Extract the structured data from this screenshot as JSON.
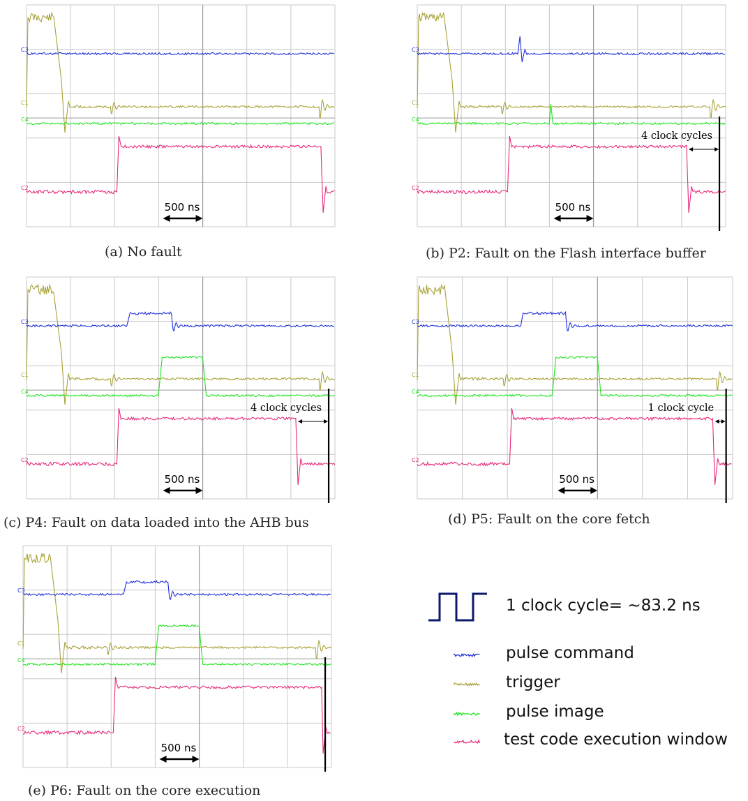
{
  "chart_data": [
    {
      "type": "line",
      "id": "a",
      "caption": "(a) No fault",
      "timebase_label": "500 ns",
      "colors": {
        "pulse_command": "#1f2fd8",
        "trigger": "#a8a23a",
        "pulse_image": "#1fe41f",
        "window": "#e8297a"
      },
      "pulse_command_active": false,
      "pulse_image_active": false,
      "window_clock_cycles": null,
      "channel_tags": [
        "C3",
        "C1",
        "C4",
        "C2"
      ]
    },
    {
      "type": "line",
      "id": "b",
      "caption": "(b) P2: Fault on the Flash interface buffer",
      "timebase_label": "500 ns",
      "annotation": "4 clock cycles",
      "window_clock_cycles": 4,
      "pulse_command_active": "glitch",
      "pulse_image_active": "glitch",
      "channel_tags": [
        "C3",
        "C1",
        "C4",
        "C2"
      ]
    },
    {
      "type": "line",
      "id": "c",
      "caption": "(c) P4: Fault on data loaded into the AHB bus",
      "timebase_label": "500 ns",
      "annotation": "4 clock cycles",
      "window_clock_cycles": 4,
      "pulse_command_active": true,
      "pulse_image_active": true,
      "channel_tags": [
        "C3",
        "C1",
        "C4",
        "C2"
      ]
    },
    {
      "type": "line",
      "id": "d",
      "caption": "(d) P5: Fault on the core fetch",
      "timebase_label": "500 ns",
      "annotation": "1 clock cycle",
      "window_clock_cycles": 1,
      "pulse_command_active": true,
      "pulse_image_active": true,
      "channel_tags": [
        "C3",
        "C1",
        "C4",
        "C2"
      ]
    },
    {
      "type": "line",
      "id": "e",
      "caption": "(e) P6: Fault on the core execution",
      "timebase_label": "500 ns",
      "annotation": "",
      "window_clock_cycles": 0,
      "pulse_command_active": true,
      "pulse_image_active": true,
      "channel_tags": [
        "C3",
        "C1",
        "C4",
        "C2"
      ]
    }
  ],
  "legend": {
    "clock_label": "1 clock cycle= ~83.2 ns",
    "items": [
      {
        "label": "pulse command",
        "color": "#1f2fd8"
      },
      {
        "label": "trigger",
        "color": "#a8a23a"
      },
      {
        "label": "pulse image",
        "color": "#1fe41f"
      },
      {
        "label": "test code execution window",
        "color": "#e8297a"
      }
    ]
  }
}
